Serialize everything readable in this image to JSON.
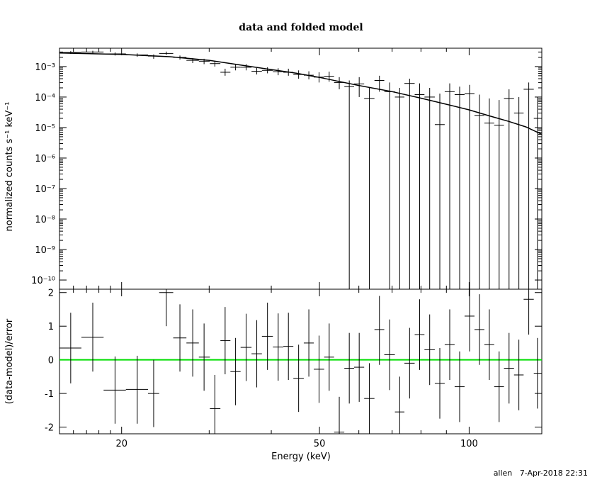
{
  "footer": {
    "user": "allen",
    "timestamp": "7-Apr-2018 22:31"
  },
  "chart_data": [
    {
      "type": "scatter",
      "title": "data and folded model",
      "xlabel": "",
      "ylabel": "normalized counts s⁻¹ keV⁻¹",
      "xscale": "log",
      "yscale": "log",
      "xlim": [
        15,
        140
      ],
      "ylim": [
        5e-11,
        0.004
      ],
      "yticks": [
        {
          "v": 1e-10,
          "label": "10⁻¹⁰"
        },
        {
          "v": 1e-09,
          "label": "10⁻⁹"
        },
        {
          "v": 1e-08,
          "label": "10⁻⁸"
        },
        {
          "v": 1e-07,
          "label": "10⁻⁷"
        },
        {
          "v": 1e-06,
          "label": "10⁻⁶"
        },
        {
          "v": 1e-05,
          "label": "10⁻⁵"
        },
        {
          "v": 0.0001,
          "label": "10⁻⁴"
        },
        {
          "v": 0.001,
          "label": "10⁻³"
        }
      ],
      "series": [
        {
          "kind": "data",
          "points": [
            {
              "x": 15.8,
              "xlo": 15.0,
              "xhi": 16.6,
              "y": 0.0029,
              "ylo": 0.0026,
              "yhi": 0.0032
            },
            {
              "x": 17.5,
              "xlo": 16.6,
              "xhi": 18.4,
              "y": 0.003,
              "ylo": 0.0027,
              "yhi": 0.0033
            },
            {
              "x": 19.4,
              "xlo": 18.4,
              "xhi": 20.4,
              "y": 0.0026,
              "ylo": 0.0023,
              "yhi": 0.0029
            },
            {
              "x": 21.5,
              "xlo": 20.4,
              "xhi": 22.6,
              "y": 0.0024,
              "ylo": 0.0021,
              "yhi": 0.0027
            },
            {
              "x": 23.2,
              "xlo": 22.6,
              "xhi": 23.8,
              "y": 0.0022,
              "ylo": 0.0018,
              "yhi": 0.0025
            },
            {
              "x": 24.6,
              "xlo": 23.8,
              "xhi": 25.4,
              "y": 0.0027,
              "ylo": 0.0024,
              "yhi": 0.0031
            },
            {
              "x": 26.2,
              "xlo": 25.4,
              "xhi": 27.0,
              "y": 0.002,
              "ylo": 0.0017,
              "yhi": 0.0023
            },
            {
              "x": 27.8,
              "xlo": 27.0,
              "xhi": 28.6,
              "y": 0.0016,
              "ylo": 0.0013,
              "yhi": 0.0019
            },
            {
              "x": 29.3,
              "xlo": 28.6,
              "xhi": 30.1,
              "y": 0.0015,
              "ylo": 0.0012,
              "yhi": 0.0018
            },
            {
              "x": 30.8,
              "xlo": 30.1,
              "xhi": 31.6,
              "y": 0.00125,
              "ylo": 0.001,
              "yhi": 0.0015
            },
            {
              "x": 32.3,
              "xlo": 31.6,
              "xhi": 33.1,
              "y": 0.00065,
              "ylo": 0.0005,
              "yhi": 0.00085
            },
            {
              "x": 33.9,
              "xlo": 33.1,
              "xhi": 34.7,
              "y": 0.00095,
              "ylo": 0.00075,
              "yhi": 0.0012
            },
            {
              "x": 35.6,
              "xlo": 34.7,
              "xhi": 36.5,
              "y": 0.00095,
              "ylo": 0.00075,
              "yhi": 0.0012
            },
            {
              "x": 37.4,
              "xlo": 36.5,
              "xhi": 38.3,
              "y": 0.0007,
              "ylo": 0.00055,
              "yhi": 0.0009
            },
            {
              "x": 39.3,
              "xlo": 38.3,
              "xhi": 40.3,
              "y": 0.00075,
              "ylo": 0.0006,
              "yhi": 0.00095
            },
            {
              "x": 41.3,
              "xlo": 40.3,
              "xhi": 42.3,
              "y": 0.00068,
              "ylo": 0.00052,
              "yhi": 0.00088
            },
            {
              "x": 43.3,
              "xlo": 42.3,
              "xhi": 44.3,
              "y": 0.00065,
              "ylo": 0.0005,
              "yhi": 0.00085
            },
            {
              "x": 45.4,
              "xlo": 44.3,
              "xhi": 46.5,
              "y": 0.00055,
              "ylo": 0.0004,
              "yhi": 0.00075
            },
            {
              "x": 47.6,
              "xlo": 46.5,
              "xhi": 48.7,
              "y": 0.00052,
              "ylo": 0.00038,
              "yhi": 0.0007
            },
            {
              "x": 49.9,
              "xlo": 48.7,
              "xhi": 51.1,
              "y": 0.00045,
              "ylo": 0.0003,
              "yhi": 0.00065
            },
            {
              "x": 52.3,
              "xlo": 51.1,
              "xhi": 53.5,
              "y": 0.00048,
              "ylo": 0.00032,
              "yhi": 0.00068
            },
            {
              "x": 54.8,
              "xlo": 53.5,
              "xhi": 56.1,
              "y": 0.0003,
              "ylo": 0.00018,
              "yhi": 0.00045
            },
            {
              "x": 57.4,
              "xlo": 56.1,
              "xhi": 58.7,
              "y": 0.00022,
              "ylo": 5e-11,
              "yhi": 0.00035
            },
            {
              "x": 60.1,
              "xlo": 58.7,
              "xhi": 61.5,
              "y": 0.00027,
              "ylo": 0.0001,
              "yhi": 0.00045
            },
            {
              "x": 63.0,
              "xlo": 61.5,
              "xhi": 64.5,
              "y": 9e-05,
              "ylo": 5e-11,
              "yhi": 0.0002
            },
            {
              "x": 66.0,
              "xlo": 64.5,
              "xhi": 67.5,
              "y": 0.00035,
              "ylo": 0.00015,
              "yhi": 0.0005
            },
            {
              "x": 69.2,
              "xlo": 67.5,
              "xhi": 70.9,
              "y": 0.00015,
              "ylo": 5e-11,
              "yhi": 0.0003
            },
            {
              "x": 72.5,
              "xlo": 70.9,
              "xhi": 74.1,
              "y": 0.0001,
              "ylo": 5e-11,
              "yhi": 0.0002
            },
            {
              "x": 75.9,
              "xlo": 74.1,
              "xhi": 77.7,
              "y": 0.00028,
              "ylo": 5e-11,
              "yhi": 0.0004
            },
            {
              "x": 79.5,
              "xlo": 77.7,
              "xhi": 81.3,
              "y": 0.00012,
              "ylo": 5e-11,
              "yhi": 0.00028
            },
            {
              "x": 83.3,
              "xlo": 81.3,
              "xhi": 85.3,
              "y": 0.0001,
              "ylo": 5e-11,
              "yhi": 0.0002
            },
            {
              "x": 87.3,
              "xlo": 85.3,
              "xhi": 89.3,
              "y": 1.25e-05,
              "ylo": 5e-11,
              "yhi": 0.00013
            },
            {
              "x": 91.4,
              "xlo": 89.3,
              "xhi": 93.5,
              "y": 0.00015,
              "ylo": 5e-11,
              "yhi": 0.00028
            },
            {
              "x": 95.7,
              "xlo": 93.5,
              "xhi": 97.9,
              "y": 0.00012,
              "ylo": 5e-11,
              "yhi": 0.00022
            },
            {
              "x": 100.2,
              "xlo": 97.9,
              "xhi": 102.5,
              "y": 0.00013,
              "ylo": 5e-11,
              "yhi": 0.00025
            },
            {
              "x": 104.9,
              "xlo": 102.5,
              "xhi": 107.3,
              "y": 2.5e-05,
              "ylo": 5e-11,
              "yhi": 0.00012
            },
            {
              "x": 109.8,
              "xlo": 107.3,
              "xhi": 112.3,
              "y": 1.4e-05,
              "ylo": 5e-11,
              "yhi": 9e-05
            },
            {
              "x": 114.9,
              "xlo": 112.3,
              "xhi": 117.5,
              "y": 1.2e-05,
              "ylo": 5e-11,
              "yhi": 8e-05
            },
            {
              "x": 120.3,
              "xlo": 117.5,
              "xhi": 123.1,
              "y": 9e-05,
              "ylo": 5e-11,
              "yhi": 0.00018
            },
            {
              "x": 125.9,
              "xlo": 123.1,
              "xhi": 128.7,
              "y": 3e-05,
              "ylo": 5e-11,
              "yhi": 0.0001
            },
            {
              "x": 131.8,
              "xlo": 128.7,
              "xhi": 134.9,
              "y": 0.00018,
              "ylo": 5e-11,
              "yhi": 0.0003
            },
            {
              "x": 137.2,
              "xlo": 134.9,
              "xhi": 140.0,
              "y": 2e-05,
              "ylo": 5e-11,
              "yhi": 0.0001
            }
          ]
        },
        {
          "kind": "model",
          "points": [
            [
              15.0,
              0.0028
            ],
            [
              20.0,
              0.0025
            ],
            [
              25.0,
              0.0021
            ],
            [
              30.0,
              0.0016
            ],
            [
              35.0,
              0.0011
            ],
            [
              40.0,
              0.0008
            ],
            [
              45.0,
              0.0006
            ],
            [
              50.0,
              0.00044
            ],
            [
              55.0,
              0.00032
            ],
            [
              60.0,
              0.00024
            ],
            [
              70.0,
              0.00015
            ],
            [
              80.0,
              9.2e-05
            ],
            [
              90.0,
              5.8e-05
            ],
            [
              100.0,
              3.8e-05
            ],
            [
              110.0,
              2.4e-05
            ],
            [
              120.0,
              1.6e-05
            ],
            [
              130.0,
              1.05e-05
            ],
            [
              140.0,
              6e-06
            ]
          ]
        }
      ]
    },
    {
      "type": "scatter",
      "title": "",
      "xlabel": "Energy (keV)",
      "ylabel": "(data-model)/error",
      "xscale": "log",
      "xlim": [
        15,
        140
      ],
      "ylim": [
        -2.2,
        2.1
      ],
      "xticks": [
        20,
        50,
        100
      ],
      "yticks": [
        -2,
        -1,
        0,
        1,
        2
      ],
      "zero_line_color": "#00dd00",
      "series": [
        {
          "kind": "residuals",
          "points": [
            {
              "x": 15.8,
              "xlo": 15.0,
              "xhi": 16.6,
              "y": 0.35,
              "ylo": -0.7,
              "yhi": 1.4
            },
            {
              "x": 17.5,
              "xlo": 16.6,
              "xhi": 18.4,
              "y": 0.67,
              "ylo": -0.35,
              "yhi": 1.7
            },
            {
              "x": 19.4,
              "xlo": 18.4,
              "xhi": 20.4,
              "y": -0.9,
              "ylo": -1.9,
              "yhi": 0.1
            },
            {
              "x": 21.5,
              "xlo": 20.4,
              "xhi": 22.6,
              "y": -0.88,
              "ylo": -1.9,
              "yhi": 0.12
            },
            {
              "x": 23.2,
              "xlo": 22.6,
              "xhi": 23.8,
              "y": -1.0,
              "ylo": -2.0,
              "yhi": 0.0
            },
            {
              "x": 24.6,
              "xlo": 23.8,
              "xhi": 25.4,
              "y": 2.0,
              "ylo": 1.0,
              "yhi": 2.1
            },
            {
              "x": 26.2,
              "xlo": 25.4,
              "xhi": 27.0,
              "y": 0.65,
              "ylo": -0.35,
              "yhi": 1.65
            },
            {
              "x": 27.8,
              "xlo": 27.0,
              "xhi": 28.6,
              "y": 0.5,
              "ylo": -0.5,
              "yhi": 1.5
            },
            {
              "x": 29.3,
              "xlo": 28.6,
              "xhi": 30.1,
              "y": 0.08,
              "ylo": -0.92,
              "yhi": 1.08
            },
            {
              "x": 30.8,
              "xlo": 30.1,
              "xhi": 31.6,
              "y": -1.45,
              "ylo": -2.2,
              "yhi": -0.45
            },
            {
              "x": 32.3,
              "xlo": 31.6,
              "xhi": 33.1,
              "y": 0.57,
              "ylo": -0.43,
              "yhi": 1.57
            },
            {
              "x": 33.9,
              "xlo": 33.1,
              "xhi": 34.7,
              "y": -0.35,
              "ylo": -1.35,
              "yhi": 0.65
            },
            {
              "x": 35.6,
              "xlo": 34.7,
              "xhi": 36.5,
              "y": 0.37,
              "ylo": -0.63,
              "yhi": 1.37
            },
            {
              "x": 37.4,
              "xlo": 36.5,
              "xhi": 38.3,
              "y": 0.18,
              "ylo": -0.82,
              "yhi": 1.18
            },
            {
              "x": 39.3,
              "xlo": 38.3,
              "xhi": 40.3,
              "y": 0.7,
              "ylo": -0.3,
              "yhi": 1.7
            },
            {
              "x": 41.3,
              "xlo": 40.3,
              "xhi": 42.3,
              "y": 0.38,
              "ylo": -0.62,
              "yhi": 1.38
            },
            {
              "x": 43.3,
              "xlo": 42.3,
              "xhi": 44.3,
              "y": 0.4,
              "ylo": -0.6,
              "yhi": 1.4
            },
            {
              "x": 45.4,
              "xlo": 44.3,
              "xhi": 46.5,
              "y": -0.55,
              "ylo": -1.55,
              "yhi": 0.45
            },
            {
              "x": 47.6,
              "xlo": 46.5,
              "xhi": 48.7,
              "y": 0.5,
              "ylo": -0.5,
              "yhi": 1.5
            },
            {
              "x": 49.9,
              "xlo": 48.7,
              "xhi": 51.1,
              "y": -0.28,
              "ylo": -1.28,
              "yhi": 0.72
            },
            {
              "x": 52.3,
              "xlo": 51.1,
              "xhi": 53.5,
              "y": 0.08,
              "ylo": -0.92,
              "yhi": 1.08
            },
            {
              "x": 54.8,
              "xlo": 53.5,
              "xhi": 56.1,
              "y": -2.15,
              "ylo": -2.2,
              "yhi": -1.1
            },
            {
              "x": 57.4,
              "xlo": 56.1,
              "xhi": 58.7,
              "y": -0.25,
              "ylo": -1.3,
              "yhi": 0.8
            },
            {
              "x": 60.1,
              "xlo": 58.7,
              "xhi": 61.5,
              "y": -0.22,
              "ylo": -1.25,
              "yhi": 0.8
            },
            {
              "x": 63.0,
              "xlo": 61.5,
              "xhi": 64.5,
              "y": -1.15,
              "ylo": -2.2,
              "yhi": -0.1
            },
            {
              "x": 66.0,
              "xlo": 64.5,
              "xhi": 67.5,
              "y": 0.9,
              "ylo": -0.15,
              "yhi": 1.9
            },
            {
              "x": 69.2,
              "xlo": 67.5,
              "xhi": 70.9,
              "y": 0.15,
              "ylo": -0.9,
              "yhi": 1.2
            },
            {
              "x": 72.5,
              "xlo": 70.9,
              "xhi": 74.1,
              "y": -1.55,
              "ylo": -2.2,
              "yhi": -0.5
            },
            {
              "x": 75.9,
              "xlo": 74.1,
              "xhi": 77.7,
              "y": -0.1,
              "ylo": -1.15,
              "yhi": 0.95
            },
            {
              "x": 79.5,
              "xlo": 77.7,
              "xhi": 81.3,
              "y": 0.75,
              "ylo": -0.3,
              "yhi": 1.8
            },
            {
              "x": 83.3,
              "xlo": 81.3,
              "xhi": 85.3,
              "y": 0.3,
              "ylo": -0.75,
              "yhi": 1.35
            },
            {
              "x": 87.3,
              "xlo": 85.3,
              "xhi": 89.3,
              "y": -0.7,
              "ylo": -1.75,
              "yhi": 0.35
            },
            {
              "x": 91.4,
              "xlo": 89.3,
              "xhi": 93.5,
              "y": 0.45,
              "ylo": -0.6,
              "yhi": 1.5
            },
            {
              "x": 95.7,
              "xlo": 93.5,
              "xhi": 97.9,
              "y": -0.8,
              "ylo": -1.85,
              "yhi": 0.25
            },
            {
              "x": 100.2,
              "xlo": 97.9,
              "xhi": 102.5,
              "y": 1.3,
              "ylo": 0.25,
              "yhi": 2.1
            },
            {
              "x": 104.9,
              "xlo": 102.5,
              "xhi": 107.3,
              "y": 0.9,
              "ylo": -0.15,
              "yhi": 1.95
            },
            {
              "x": 109.8,
              "xlo": 107.3,
              "xhi": 112.3,
              "y": 0.45,
              "ylo": -0.6,
              "yhi": 1.5
            },
            {
              "x": 114.9,
              "xlo": 112.3,
              "xhi": 117.5,
              "y": -0.8,
              "ylo": -1.85,
              "yhi": 0.25
            },
            {
              "x": 120.3,
              "xlo": 117.5,
              "xhi": 123.1,
              "y": -0.25,
              "ylo": -1.3,
              "yhi": 0.8
            },
            {
              "x": 125.9,
              "xlo": 123.1,
              "xhi": 128.7,
              "y": -0.45,
              "ylo": -1.5,
              "yhi": 0.6
            },
            {
              "x": 131.8,
              "xlo": 128.7,
              "xhi": 134.9,
              "y": 1.8,
              "ylo": 0.75,
              "yhi": 2.1
            },
            {
              "x": 137.2,
              "xlo": 134.9,
              "xhi": 140.0,
              "y": -0.4,
              "ylo": -1.45,
              "yhi": 0.65
            }
          ]
        }
      ]
    }
  ]
}
